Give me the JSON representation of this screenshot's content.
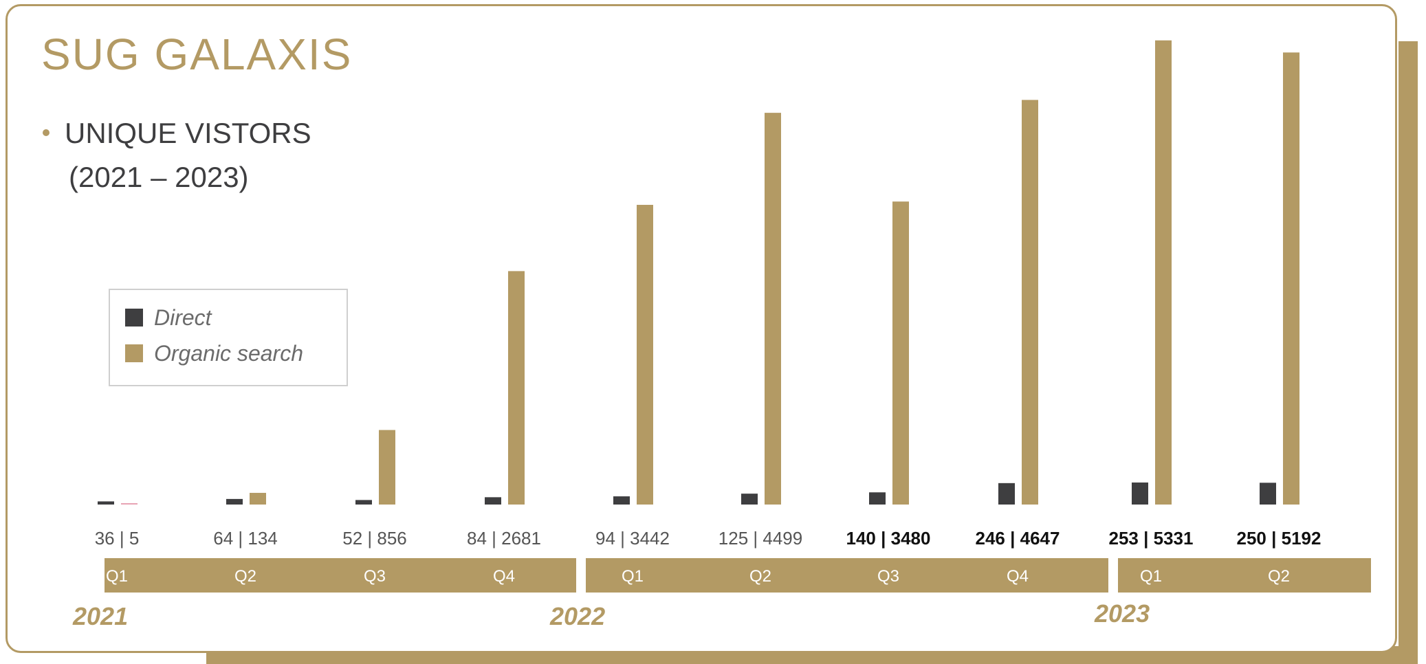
{
  "header": {
    "title": "SUG GALAXIS",
    "subtitle_line1": "UNIQUE VISTORS",
    "subtitle_line2": "(2021 – 2023)"
  },
  "colors": {
    "direct": "#3e3e40",
    "organic": "#b39a64",
    "accent": "#b39a64",
    "first_organic_bar": "#e8a3b4"
  },
  "chart_data": {
    "type": "bar",
    "series": [
      {
        "name": "Direct",
        "values": [
          36,
          64,
          52,
          84,
          94,
          125,
          140,
          246,
          253,
          250
        ]
      },
      {
        "name": "Organic search",
        "values": [
          5,
          134,
          856,
          2681,
          3442,
          4499,
          3480,
          4647,
          5331,
          5192
        ]
      }
    ],
    "categories": [
      "Q1",
      "Q2",
      "Q3",
      "Q4",
      "Q1",
      "Q2",
      "Q3",
      "Q4",
      "Q1",
      "Q2"
    ],
    "data_labels": [
      "36 | 5",
      "64 | 134",
      "52 | 856",
      "84 | 2681",
      "94 | 3442",
      "125 | 4499",
      "140 | 3480",
      "246 | 4647",
      "253 | 5331",
      "250 | 5192"
    ],
    "year_groups": [
      {
        "year": "2021",
        "quarters": 4
      },
      {
        "year": "2022",
        "quarters": 4
      },
      {
        "year": "2023",
        "quarters": 2
      }
    ],
    "legend": [
      "Direct",
      "Organic search"
    ],
    "legend_position": "left",
    "grid": false,
    "ylim": [
      0,
      5400
    ]
  }
}
